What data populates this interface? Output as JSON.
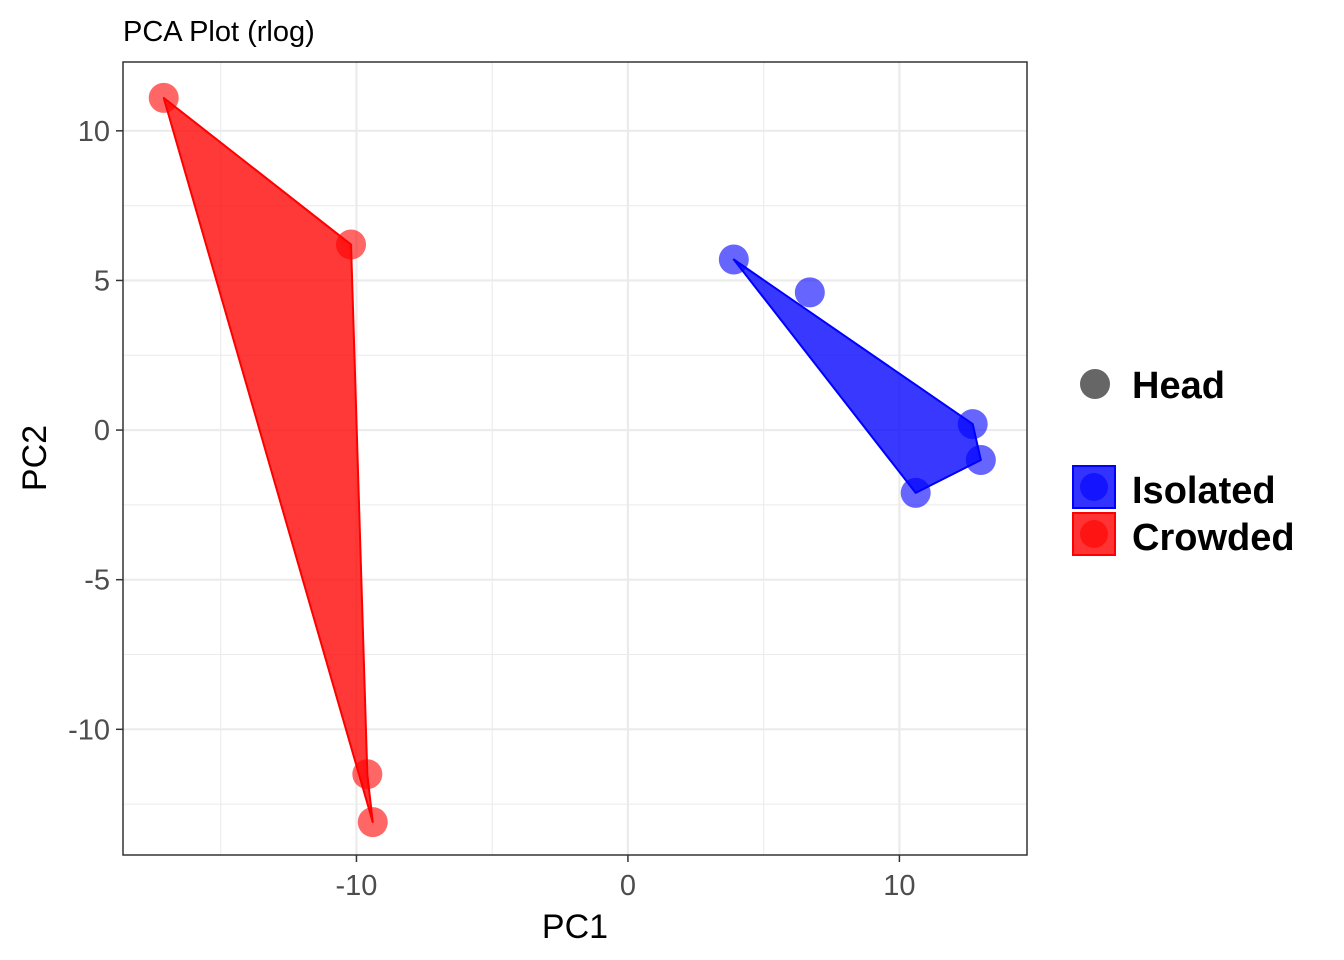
{
  "chart_data": {
    "type": "scatter",
    "title": "PCA Plot (rlog)",
    "xlabel": "PC1",
    "ylabel": "PC2",
    "xlim": [
      -18.6,
      14.7
    ],
    "ylim": [
      -14.2,
      12.3
    ],
    "x_ticks": [
      -10,
      0,
      10
    ],
    "x_tick_labels": [
      "-10",
      "0",
      "10"
    ],
    "y_ticks": [
      -10,
      -5,
      0,
      5,
      10
    ],
    "y_tick_labels": [
      "-10",
      "-5",
      "0",
      "5",
      "10"
    ],
    "grid": true,
    "legend_position": "right",
    "shape_legend": {
      "label": "Head",
      "color": "#666666"
    },
    "series": [
      {
        "name": "Isolated",
        "color": "#0000ff",
        "points": [
          {
            "x": 3.9,
            "y": 5.7
          },
          {
            "x": 6.7,
            "y": 4.6
          },
          {
            "x": 12.7,
            "y": 0.2
          },
          {
            "x": 13.0,
            "y": -1.0
          },
          {
            "x": 10.6,
            "y": -2.1
          }
        ],
        "hull": [
          {
            "x": 3.9,
            "y": 5.7
          },
          {
            "x": 12.7,
            "y": 0.2
          },
          {
            "x": 13.0,
            "y": -1.0
          },
          {
            "x": 10.6,
            "y": -2.1
          }
        ]
      },
      {
        "name": "Crowded",
        "color": "#ff0000",
        "points": [
          {
            "x": -17.1,
            "y": 11.1
          },
          {
            "x": -10.2,
            "y": 6.2
          },
          {
            "x": -9.6,
            "y": -11.5
          },
          {
            "x": -9.4,
            "y": -13.1
          }
        ],
        "hull": [
          {
            "x": -17.1,
            "y": 11.1
          },
          {
            "x": -10.2,
            "y": 6.2
          },
          {
            "x": -9.6,
            "y": -11.5
          },
          {
            "x": -9.4,
            "y": -13.1
          }
        ]
      }
    ]
  }
}
